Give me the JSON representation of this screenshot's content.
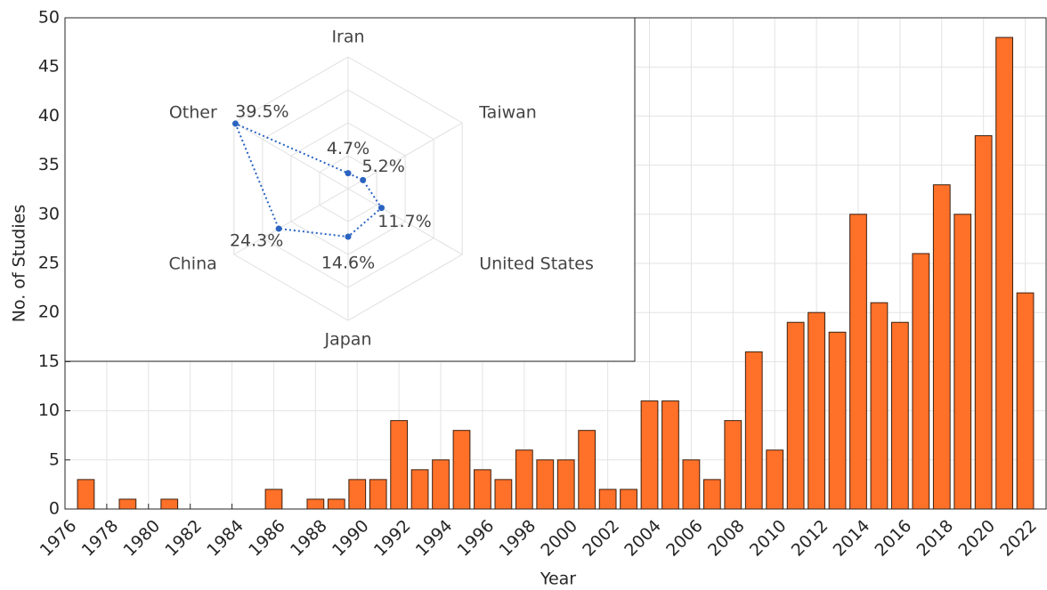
{
  "chart_data": [
    {
      "type": "bar",
      "xlabel": "Year",
      "ylabel": "No. of Studies",
      "x": [
        1977,
        1979,
        1981,
        1986,
        1988,
        1989,
        1990,
        1991,
        1992,
        1993,
        1994,
        1995,
        1996,
        1997,
        1998,
        1999,
        2000,
        2001,
        2002,
        2003,
        2004,
        2005,
        2006,
        2007,
        2008,
        2009,
        2010,
        2011,
        2012,
        2013,
        2014,
        2015,
        2016,
        2017,
        2018,
        2019,
        2020,
        2021,
        2022
      ],
      "values": [
        3,
        1,
        1,
        2,
        1,
        1,
        3,
        3,
        9,
        4,
        5,
        8,
        4,
        3,
        6,
        5,
        5,
        8,
        2,
        2,
        11,
        11,
        5,
        3,
        9,
        16,
        6,
        19,
        20,
        18,
        30,
        21,
        19,
        26,
        33,
        30,
        38,
        48,
        22
      ],
      "color": "#ff7028",
      "xlim": [
        1976,
        2023
      ],
      "xticks": [
        1976,
        1978,
        1980,
        1982,
        1984,
        1986,
        1988,
        1990,
        1992,
        1994,
        1996,
        1998,
        2000,
        2002,
        2004,
        2006,
        2008,
        2010,
        2012,
        2014,
        2016,
        2018,
        2020,
        2022
      ],
      "ylim": [
        0,
        50
      ],
      "yticks": [
        0,
        5,
        10,
        15,
        20,
        25,
        30,
        35,
        40,
        45,
        50
      ],
      "grid": true
    },
    {
      "type": "radar",
      "categories": [
        "Iran",
        "Taiwan",
        "United States",
        "Japan",
        "China",
        "Other"
      ],
      "values": [
        4.7,
        5.2,
        11.7,
        14.6,
        24.3,
        39.5
      ],
      "value_labels": [
        "4.7%",
        "5.2%",
        "11.7%",
        "14.6%",
        "24.3%",
        "39.5%"
      ],
      "color": "#2a63c0",
      "rlim": [
        0,
        40
      ],
      "rticks": [
        10,
        20,
        30,
        40
      ]
    }
  ]
}
